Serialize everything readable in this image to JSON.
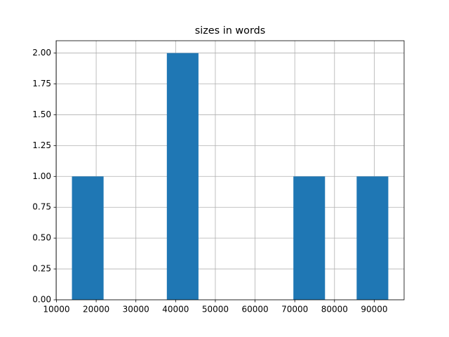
{
  "chart_data": {
    "type": "histogram",
    "title": "sizes in words",
    "bins": [
      13900,
      21864,
      29828,
      37792,
      45756,
      53720,
      61684,
      69648,
      77612,
      85576,
      93540
    ],
    "counts": [
      1,
      0,
      0,
      2,
      0,
      0,
      0,
      1,
      0,
      1
    ],
    "color": "#1f77b4",
    "xlim": [
      9918,
      97522
    ],
    "xticks": [
      10000,
      20000,
      30000,
      40000,
      50000,
      60000,
      70000,
      80000,
      90000
    ],
    "ylim": [
      0,
      2.1
    ],
    "yticks": [
      {
        "value": 0,
        "label": "0.00"
      },
      {
        "value": 0.25,
        "label": "0.25"
      },
      {
        "value": 0.5,
        "label": "0.50"
      },
      {
        "value": 0.75,
        "label": "0.75"
      },
      {
        "value": 1,
        "label": "1.00"
      },
      {
        "value": 1.25,
        "label": "1.25"
      },
      {
        "value": 1.5,
        "label": "1.50"
      },
      {
        "value": 1.75,
        "label": "1.75"
      },
      {
        "value": 2,
        "label": "2.00"
      }
    ],
    "grid": true
  }
}
